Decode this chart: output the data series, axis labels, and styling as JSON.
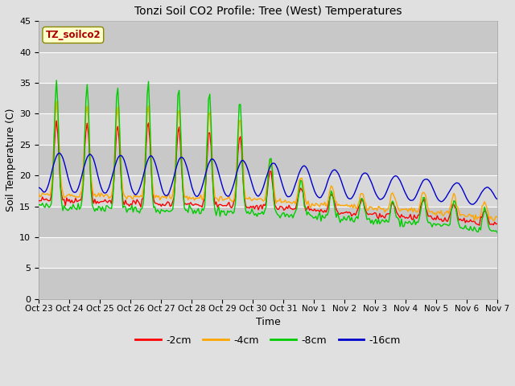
{
  "title": "Tonzi Soil CO2 Profile: Tree (West) Temperatures",
  "xlabel": "Time",
  "ylabel": "Soil Temperature (C)",
  "ylim": [
    0,
    45
  ],
  "yticks": [
    0,
    5,
    10,
    15,
    20,
    25,
    30,
    35,
    40,
    45
  ],
  "legend_label": "TZ_soilco2",
  "series_labels": [
    "-2cm",
    "-4cm",
    "-8cm",
    "-16cm"
  ],
  "series_colors": [
    "#ff0000",
    "#ffa500",
    "#00cc00",
    "#0000cc"
  ],
  "tick_labels": [
    "Oct 23",
    "Oct 24",
    "Oct 25",
    "Oct 26",
    "Oct 27",
    "Oct 28",
    "Oct 29",
    "Oct 30",
    "Oct 31",
    "Nov 1",
    "Nov 2",
    "Nov 3",
    "Nov 4",
    "Nov 5",
    "Nov 6",
    "Nov 7"
  ],
  "bg_color_outer": "#e0e0e0",
  "bg_color_inner": "#d0d0d0",
  "grid_color": "#ffffff",
  "line_width": 1.0,
  "figsize": [
    6.4,
    4.8
  ],
  "dpi": 100
}
